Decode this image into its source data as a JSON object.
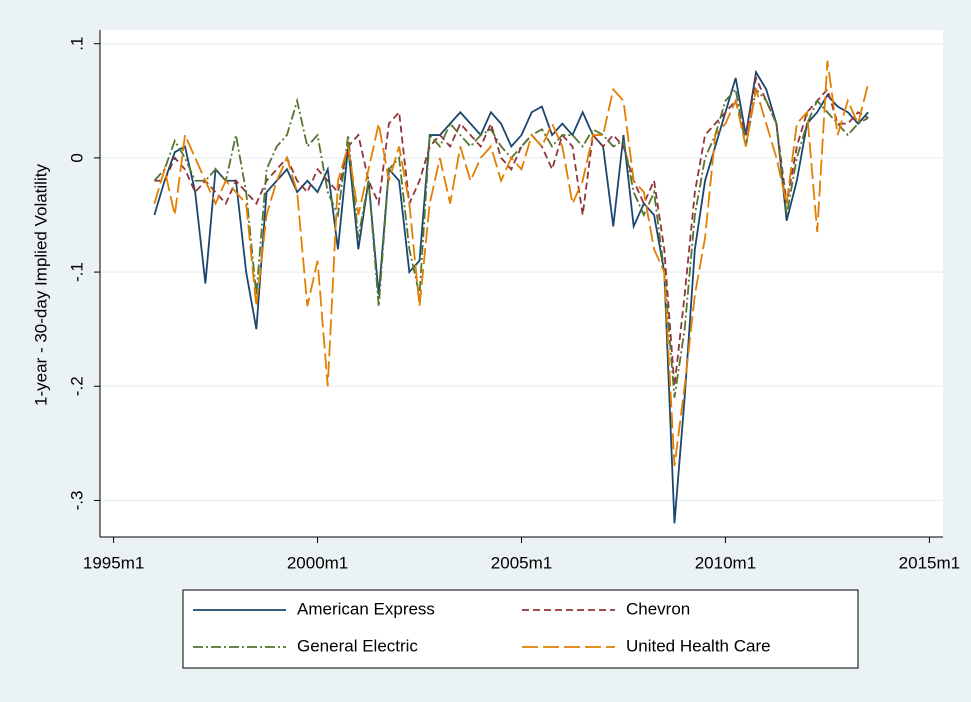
{
  "chart_data": {
    "type": "line",
    "ylabel": "1-year - 30-day Implied Volatility",
    "x": [
      432,
      435,
      438,
      441,
      444,
      447,
      450,
      453,
      456,
      459,
      462,
      465,
      468,
      471,
      474,
      477,
      480,
      483,
      486,
      489,
      492,
      495,
      498,
      501,
      504,
      507,
      510,
      513,
      516,
      519,
      522,
      525,
      528,
      531,
      534,
      537,
      540,
      543,
      546,
      549,
      552,
      555,
      558,
      561,
      564,
      567,
      570,
      573,
      576,
      579,
      582,
      585,
      588,
      591,
      594,
      597,
      600,
      603,
      606,
      609,
      612,
      615,
      618,
      621,
      624,
      627,
      630,
      633,
      636,
      639,
      642
    ],
    "xlim": [
      416,
      664
    ],
    "xticks": [
      {
        "value": 420,
        "label": "1995m1"
      },
      {
        "value": 480,
        "label": "2000m1"
      },
      {
        "value": 540,
        "label": "2005m1"
      },
      {
        "value": 600,
        "label": "2010m1"
      },
      {
        "value": 660,
        "label": "2015m1"
      }
    ],
    "ylim": [
      -0.332,
      0.112
    ],
    "yticks": [
      {
        "value": 0.1,
        "label": ".1"
      },
      0,
      {
        "value": -0.1,
        "label": "-.1"
      },
      {
        "value": -0.2,
        "label": "-.2"
      },
      {
        "value": -0.3,
        "label": "-.3"
      }
    ],
    "grid": true,
    "legend": "bottom",
    "series": [
      {
        "name": "American Express",
        "color": "#1a476f",
        "dash": "none",
        "values": [
          -0.05,
          -0.02,
          0.005,
          0.01,
          -0.03,
          -0.11,
          -0.01,
          -0.02,
          -0.02,
          -0.1,
          -0.15,
          -0.03,
          -0.02,
          -0.01,
          -0.03,
          -0.02,
          -0.03,
          -0.01,
          -0.08,
          0.01,
          -0.08,
          -0.02,
          -0.12,
          -0.01,
          -0.02,
          -0.1,
          -0.09,
          0.02,
          0.02,
          0.03,
          0.04,
          0.03,
          0.02,
          0.04,
          0.03,
          0.01,
          0.02,
          0.04,
          0.045,
          0.02,
          0.03,
          0.02,
          0.04,
          0.02,
          0.01,
          -0.06,
          0.02,
          -0.06,
          -0.04,
          -0.05,
          -0.1,
          -0.32,
          -0.21,
          -0.08,
          -0.02,
          0.01,
          0.04,
          0.07,
          0.02,
          0.075,
          0.06,
          0.03,
          -0.055,
          -0.02,
          0.03,
          0.04,
          0.055,
          0.045,
          0.04,
          0.03,
          0.04
        ]
      },
      {
        "name": "Chevron",
        "color": "#90353b",
        "dash": "7,4",
        "values": [
          -0.02,
          -0.02,
          0,
          -0.01,
          -0.03,
          -0.02,
          -0.03,
          -0.04,
          -0.02,
          -0.03,
          -0.04,
          -0.02,
          -0.01,
          0,
          -0.02,
          -0.03,
          -0.01,
          -0.02,
          -0.03,
          0.01,
          0.02,
          -0.02,
          -0.04,
          0.03,
          0.04,
          -0.04,
          -0.02,
          0.01,
          0.02,
          0.01,
          0.03,
          0.02,
          0.01,
          0.03,
          0,
          -0.01,
          0.01,
          0.02,
          0.01,
          -0.01,
          0.02,
          0.01,
          -0.05,
          0.02,
          0.01,
          0.02,
          0.01,
          -0.02,
          -0.04,
          -0.02,
          -0.08,
          -0.2,
          -0.12,
          -0.03,
          0.02,
          0.03,
          0.04,
          0.05,
          0.02,
          0.07,
          0.05,
          0.03,
          -0.04,
          0.01,
          0.04,
          0.05,
          0.06,
          0.03,
          0.03,
          0.04,
          0.035
        ]
      },
      {
        "name": "General Electric",
        "color": "#55752f",
        "dash": "10,3,2,3",
        "values": [
          -0.02,
          -0.01,
          0.015,
          0,
          -0.02,
          -0.02,
          -0.01,
          -0.02,
          0.02,
          -0.03,
          -0.12,
          -0.01,
          0.01,
          0.02,
          0.05,
          0.01,
          0.02,
          -0.03,
          -0.05,
          0.02,
          -0.07,
          -0.02,
          -0.13,
          -0.01,
          0,
          -0.08,
          -0.12,
          0.02,
          0.01,
          0.03,
          0.02,
          0.01,
          0.02,
          0.025,
          0.01,
          0,
          0.01,
          0.02,
          0.025,
          0.01,
          0.02,
          0.02,
          0.01,
          0.025,
          0.02,
          0.01,
          0.015,
          -0.03,
          -0.05,
          -0.03,
          -0.1,
          -0.21,
          -0.15,
          -0.05,
          0,
          0.02,
          0.05,
          0.06,
          0.01,
          0.06,
          0.05,
          0.03,
          -0.05,
          0,
          0.03,
          0.05,
          0.04,
          0.03,
          0.02,
          0.03,
          0.035
        ]
      },
      {
        "name": "United Health Care",
        "color": "#e37e00",
        "dash": "16,5",
        "values": [
          -0.04,
          -0.01,
          -0.05,
          0.02,
          0,
          -0.02,
          -0.04,
          -0.02,
          -0.03,
          -0.04,
          -0.13,
          -0.05,
          -0.02,
          0,
          -0.03,
          -0.13,
          -0.09,
          -0.2,
          -0.02,
          0.01,
          -0.05,
          -0.01,
          0.03,
          -0.02,
          0.01,
          -0.04,
          -0.13,
          -0.04,
          0,
          -0.04,
          0.01,
          -0.02,
          0,
          0.01,
          -0.02,
          0,
          -0.01,
          0.02,
          0.01,
          0.03,
          0.01,
          -0.04,
          -0.02,
          0.02,
          0.02,
          0.06,
          0.05,
          -0.02,
          -0.03,
          -0.08,
          -0.1,
          -0.27,
          -0.2,
          -0.12,
          -0.07,
          0.02,
          0.03,
          0.05,
          0.01,
          0.06,
          0.03,
          0,
          -0.04,
          0.03,
          0.04,
          -0.065,
          0.085,
          0.02,
          0.05,
          0.03,
          0.065
        ]
      }
    ]
  }
}
